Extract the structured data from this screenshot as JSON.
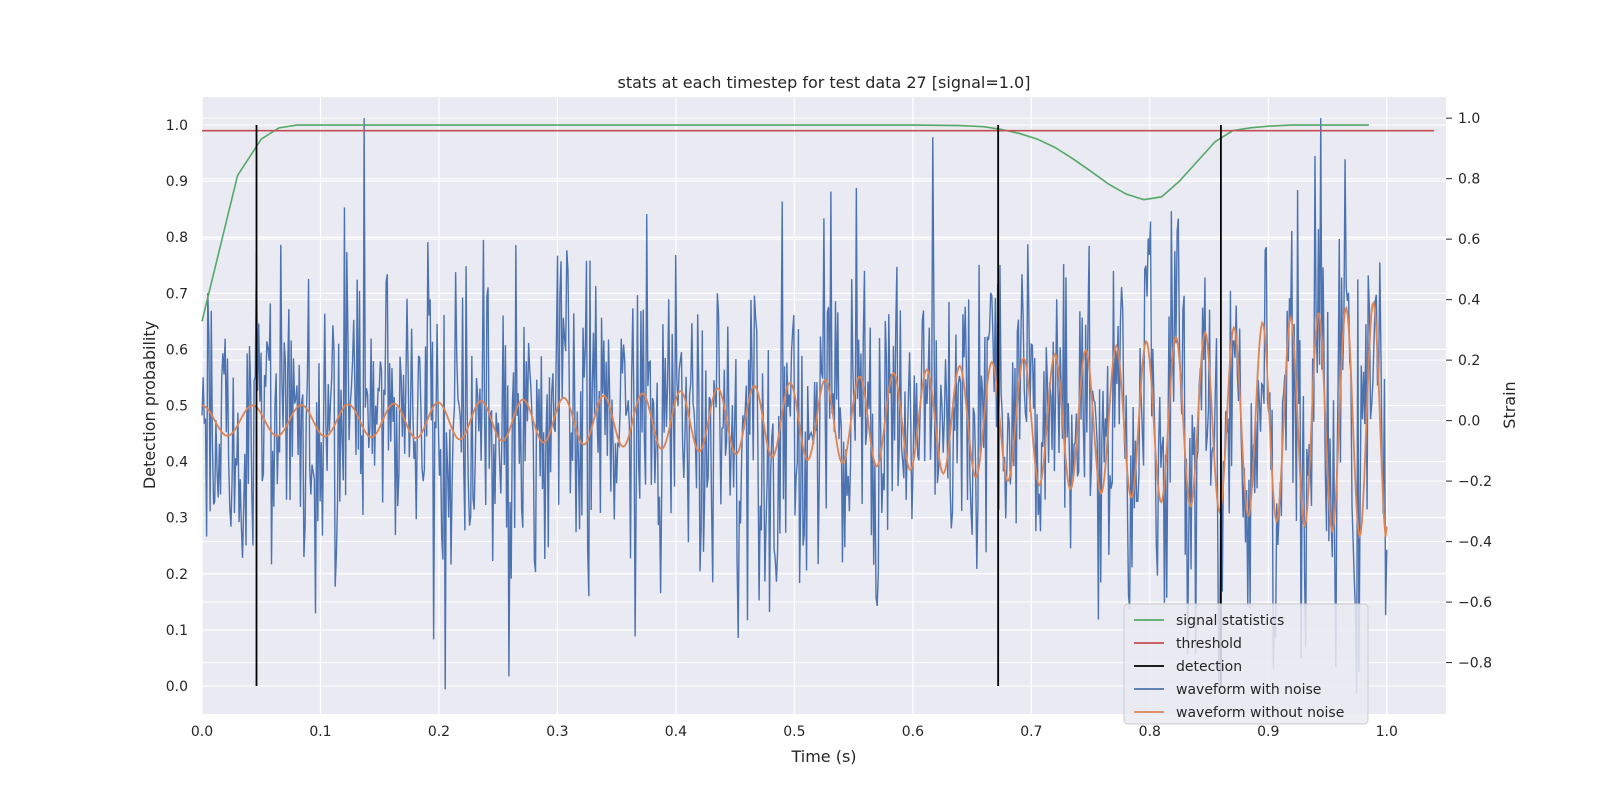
{
  "chart_data": {
    "type": "line",
    "title": "stats at each timestep for test data 27 [signal=1.0]",
    "xlabel": "Time (s)",
    "ylabel_left": "Detection probability",
    "ylabel_right": "Strain",
    "xlim": [
      0.0,
      1.05
    ],
    "ylim_left": [
      -0.05,
      1.05
    ],
    "ylim_right": [
      -0.97,
      1.07
    ],
    "x_ticks": [
      "0.0",
      "0.1",
      "0.2",
      "0.3",
      "0.4",
      "0.5",
      "0.6",
      "0.7",
      "0.8",
      "0.9",
      "1.0"
    ],
    "y_left_ticks": [
      "0.0",
      "0.1",
      "0.2",
      "0.3",
      "0.4",
      "0.5",
      "0.6",
      "0.7",
      "0.8",
      "0.9",
      "1.0"
    ],
    "y_right_ticks": [
      "−0.8",
      "−0.6",
      "−0.4",
      "−0.2",
      "0.0",
      "0.2",
      "0.4",
      "0.6",
      "0.8",
      "1.0"
    ],
    "grid": true,
    "legend_position": "lower-right",
    "colors": {
      "signal_statistics": "#55a868",
      "threshold": "#c44e52",
      "detection": "#000000",
      "waveform_with_noise": "#4c72b0",
      "waveform_without_noise": "#dd8452",
      "plot_background": "#eaeaf2",
      "grid": "#ffffff"
    },
    "series": [
      {
        "name": "signal statistics",
        "axis": "left",
        "x": [
          0.0,
          0.015,
          0.03,
          0.05,
          0.065,
          0.08,
          0.1,
          0.2,
          0.3,
          0.4,
          0.5,
          0.6,
          0.64,
          0.66,
          0.675,
          0.69,
          0.705,
          0.72,
          0.735,
          0.75,
          0.765,
          0.78,
          0.795,
          0.81,
          0.825,
          0.84,
          0.855,
          0.87,
          0.885,
          0.9,
          0.92,
          0.95,
          0.985
        ],
        "y": [
          0.65,
          0.78,
          0.91,
          0.975,
          0.995,
          1.0,
          1.0,
          1.0,
          1.0,
          1.0,
          1.0,
          1.0,
          0.999,
          0.997,
          0.992,
          0.985,
          0.975,
          0.96,
          0.94,
          0.918,
          0.895,
          0.877,
          0.867,
          0.872,
          0.9,
          0.935,
          0.97,
          0.99,
          0.995,
          0.998,
          1.0,
          1.0,
          1.0
        ]
      },
      {
        "name": "threshold",
        "axis": "left",
        "x": [
          0.0,
          1.04
        ],
        "y": [
          0.99,
          0.99
        ]
      },
      {
        "name": "detection",
        "axis": "left",
        "x": [
          0.046,
          0.672,
          0.86
        ],
        "y_range": [
          0.0,
          1.0
        ]
      },
      {
        "name": "waveform with noise",
        "axis": "right",
        "description": "noisy strain, 0.0 to 1.0 s, roughly -1.0 to 1.0",
        "x_range": [
          0.0,
          1.0
        ],
        "samples": 1024,
        "noise_std": 0.26,
        "y_min": -0.9,
        "y_max": 1.0
      },
      {
        "name": "waveform without noise",
        "axis": "right",
        "description": "chirp with growing amplitude and frequency",
        "x_range": [
          0.0,
          1.0
        ],
        "samples": 1000,
        "amplitude_start": 0.05,
        "amplitude_end": 0.4,
        "freq_start": 23,
        "freq_end": 44,
        "y_start": 0.05,
        "y_end": -0.35
      }
    ],
    "legend": [
      {
        "label": "signal statistics",
        "color": "#55a868"
      },
      {
        "label": "threshold",
        "color": "#c44e52"
      },
      {
        "label": "detection",
        "color": "#000000"
      },
      {
        "label": "waveform with noise",
        "color": "#4c72b0"
      },
      {
        "label": "waveform without noise",
        "color": "#dd8452"
      }
    ]
  }
}
